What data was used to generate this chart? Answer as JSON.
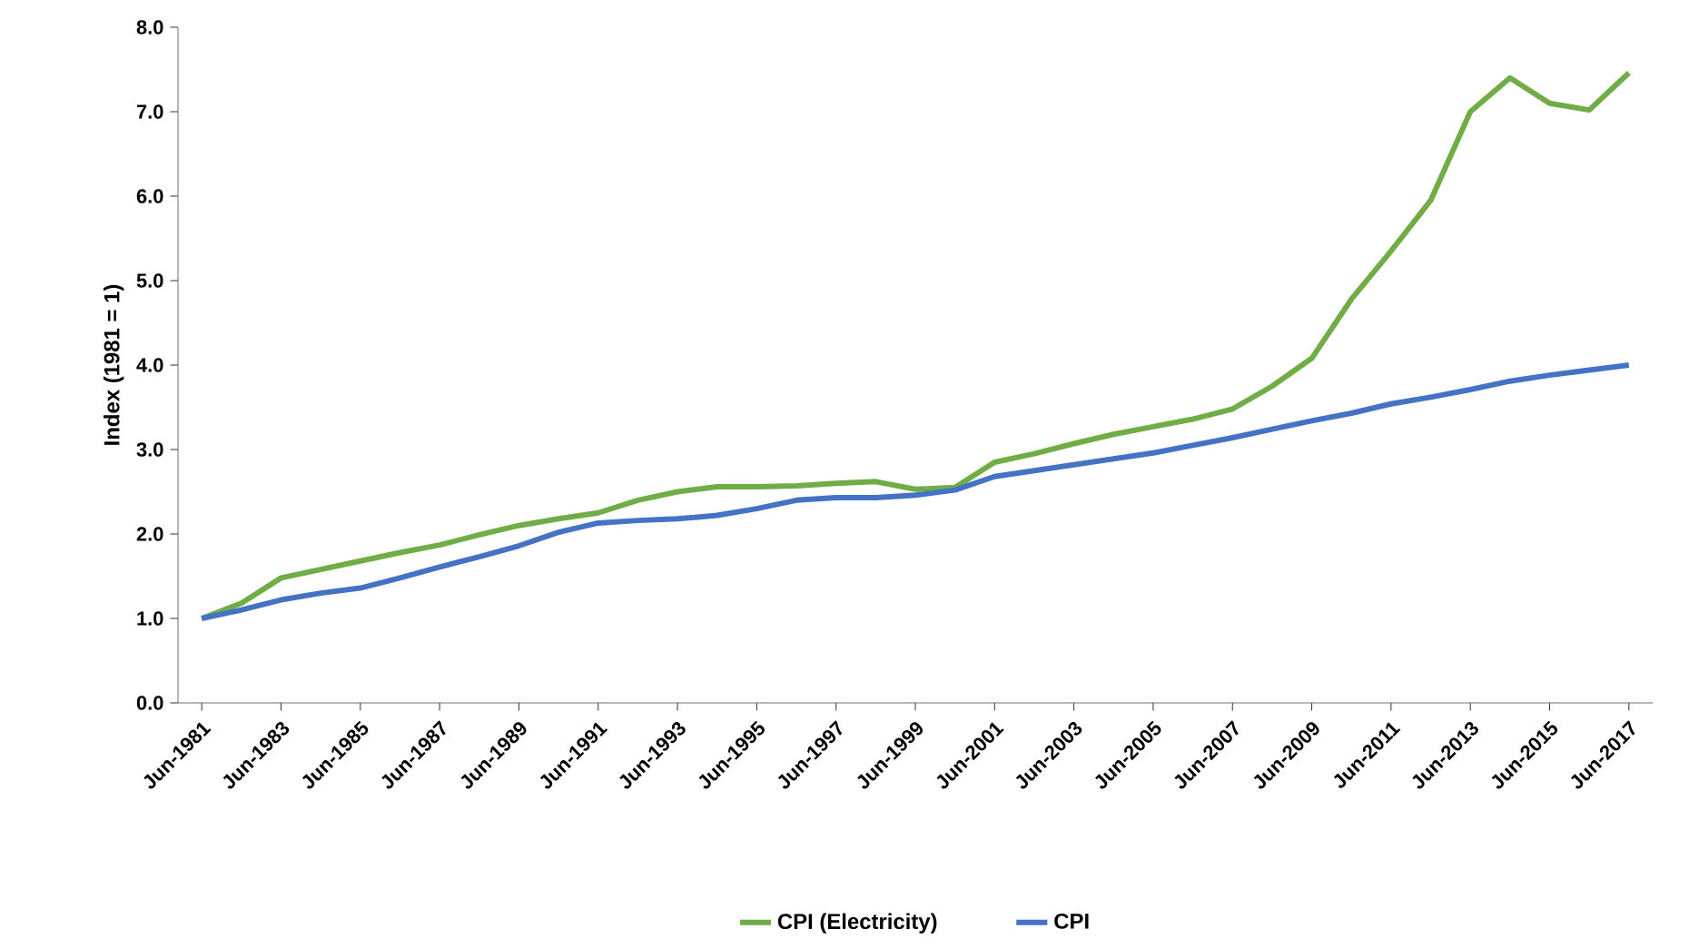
{
  "chart_data": {
    "type": "line",
    "ylabel": "Index (1981 = 1)",
    "categories": [
      "Jun-1981",
      null,
      "Jun-1983",
      null,
      "Jun-1985",
      null,
      "Jun-1987",
      null,
      "Jun-1989",
      null,
      "Jun-1991",
      null,
      "Jun-1993",
      null,
      "Jun-1995",
      null,
      "Jun-1997",
      null,
      "Jun-1999",
      null,
      "Jun-2001",
      null,
      "Jun-2003",
      null,
      "Jun-2005",
      null,
      "Jun-2007",
      null,
      "Jun-2009",
      null,
      "Jun-2011",
      null,
      "Jun-2013",
      null,
      "Jun-2015",
      null,
      "Jun-2017"
    ],
    "series": [
      {
        "name": "CPI (Electricity)",
        "color": "#70ad47",
        "values": [
          1.0,
          1.18,
          1.48,
          1.58,
          1.68,
          1.78,
          1.87,
          1.99,
          2.1,
          2.18,
          2.25,
          2.4,
          2.5,
          2.56,
          2.56,
          2.57,
          2.6,
          2.62,
          2.53,
          2.55,
          2.85,
          2.95,
          3.07,
          3.18,
          3.27,
          3.36,
          3.48,
          3.75,
          4.08,
          4.78,
          5.35,
          5.95,
          7.0,
          7.4,
          7.1,
          7.02,
          7.46
        ]
      },
      {
        "name": "CPI",
        "color": "#4472c4",
        "values": [
          1.0,
          1.1,
          1.22,
          1.3,
          1.36,
          1.48,
          1.61,
          1.73,
          1.86,
          2.02,
          2.13,
          2.16,
          2.18,
          2.22,
          2.3,
          2.4,
          2.43,
          2.43,
          2.46,
          2.52,
          2.68,
          2.75,
          2.82,
          2.89,
          2.96,
          3.05,
          3.14,
          3.24,
          3.34,
          3.43,
          3.54,
          3.62,
          3.71,
          3.81,
          3.88,
          3.94,
          4.0
        ]
      }
    ],
    "ylim": [
      0,
      8
    ],
    "yticks": [
      {
        "value": 0,
        "label": "0.0"
      },
      {
        "value": 1,
        "label": "1.0"
      },
      {
        "value": 2,
        "label": "2.0"
      },
      {
        "value": 3,
        "label": "3.0"
      },
      {
        "value": 4,
        "label": "4.0"
      },
      {
        "value": 5,
        "label": "5.0"
      },
      {
        "value": 6,
        "label": "6.0"
      },
      {
        "value": 7,
        "label": "7.0"
      },
      {
        "value": 8,
        "label": "8.0"
      }
    ],
    "legend": "bottom",
    "marker": "none",
    "line_style": "solid",
    "grid": false
  }
}
